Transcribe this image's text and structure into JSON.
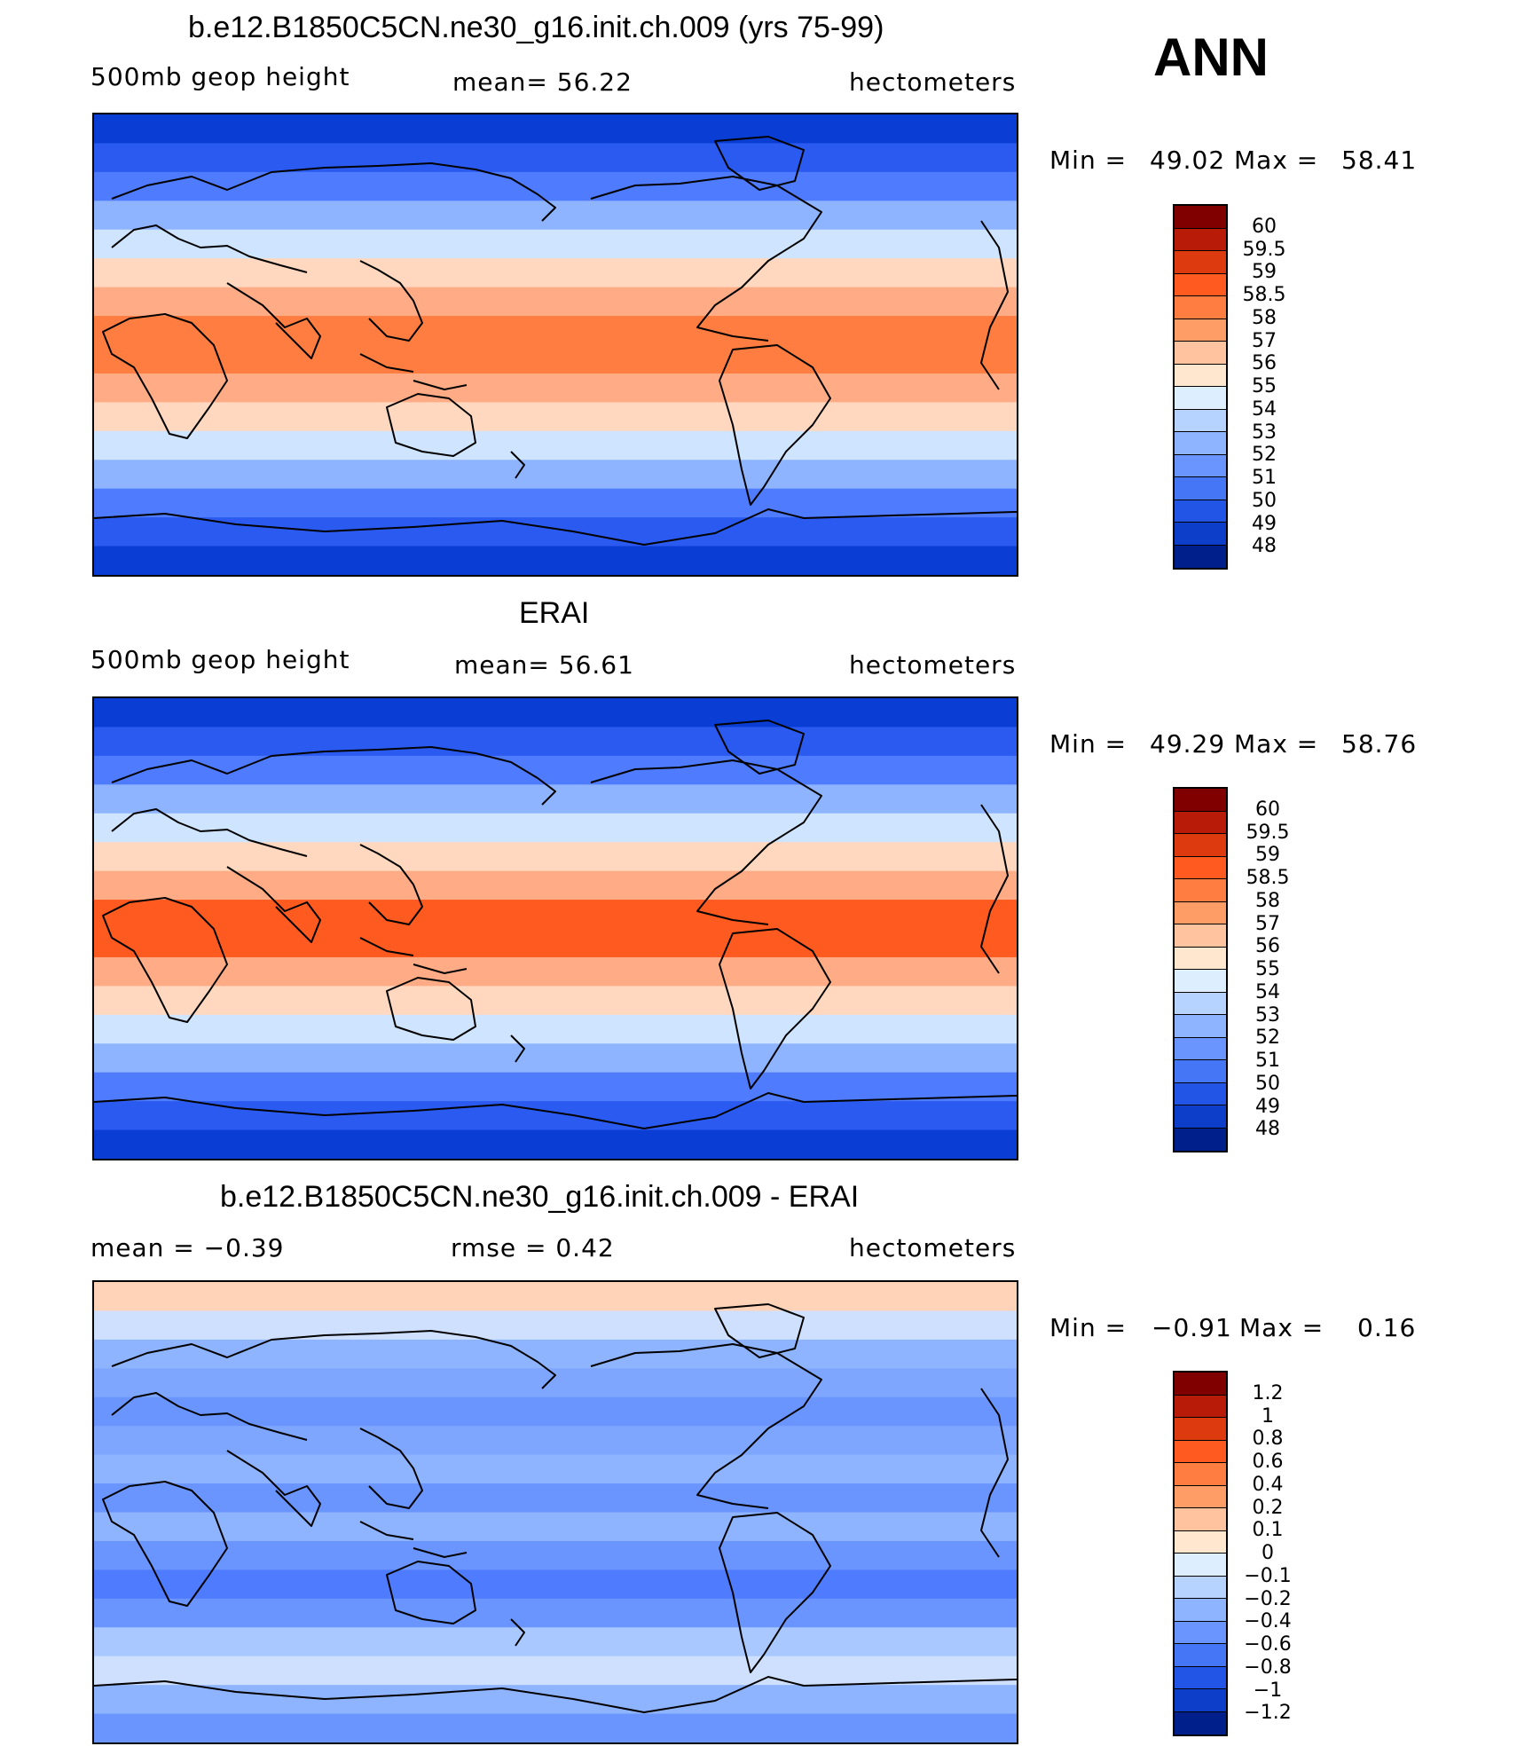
{
  "season": "ANN",
  "panels": [
    {
      "title": "b.e12.B1850C5CN.ne30_g16.init.ch.009 (yrs 75-99)",
      "left_label": "500mb  geop  height",
      "center_label": "mean=   56.22",
      "units": "hectometers",
      "min_label": "Min =",
      "min_value": "49.02",
      "max_label": "Max =",
      "max_value": "58.41",
      "colorbar": {
        "labels": [
          "60",
          "59.5",
          "59",
          "58.5",
          "58",
          "57",
          "56",
          "55",
          "54",
          "53",
          "52",
          "51",
          "50",
          "49",
          "48"
        ],
        "colors": [
          "#800000",
          "#b81c08",
          "#de3a10",
          "#ff5a1f",
          "#ff7d40",
          "#ff9d66",
          "#ffc3a0",
          "#ffe6cf",
          "#dceeff",
          "#b6d3ff",
          "#8fb4ff",
          "#6a95ff",
          "#4576f5",
          "#2255e6",
          "#0d3ec9",
          "#001f8a"
        ]
      },
      "bands": [
        "#0a3dd4",
        "#2a5af0",
        "#4f7bff",
        "#8fb4ff",
        "#cfe4ff",
        "#ffd8bf",
        "#ffac86",
        "#ff7d40",
        "#ff7d40",
        "#ffac86",
        "#ffd8bf",
        "#cfe4ff",
        "#8fb4ff",
        "#4f7bff",
        "#2a5af0",
        "#0a3dd4"
      ]
    },
    {
      "title": "ERAI",
      "left_label": "500mb  geop  height",
      "center_label": "mean=   56.61",
      "units": "hectometers",
      "min_label": "Min =",
      "min_value": "49.29",
      "max_label": "Max =",
      "max_value": "58.76",
      "colorbar": {
        "labels": [
          "60",
          "59.5",
          "59",
          "58.5",
          "58",
          "57",
          "56",
          "55",
          "54",
          "53",
          "52",
          "51",
          "50",
          "49",
          "48"
        ],
        "colors": [
          "#800000",
          "#b81c08",
          "#de3a10",
          "#ff5a1f",
          "#ff7d40",
          "#ff9d66",
          "#ffc3a0",
          "#ffe6cf",
          "#dceeff",
          "#b6d3ff",
          "#8fb4ff",
          "#6a95ff",
          "#4576f5",
          "#2255e6",
          "#0d3ec9",
          "#001f8a"
        ]
      },
      "bands": [
        "#0a3dd4",
        "#2a5af0",
        "#4f7bff",
        "#8fb4ff",
        "#cfe4ff",
        "#ffd8bf",
        "#ffac86",
        "#ff5a1f",
        "#ff5a1f",
        "#ffac86",
        "#ffd8bf",
        "#cfe4ff",
        "#8fb4ff",
        "#4f7bff",
        "#2a5af0",
        "#0a3dd4"
      ]
    },
    {
      "title": "b.e12.B1850C5CN.ne30_g16.init.ch.009 - ERAI",
      "left_label": "mean =   −0.39",
      "center_label": "rmse =    0.42",
      "units": "hectometers",
      "min_label": "Min =",
      "min_value": "−0.91",
      "max_label": "Max =",
      "max_value": "0.16",
      "colorbar": {
        "labels": [
          "1.2",
          "1",
          "0.8",
          "0.6",
          "0.4",
          "0.2",
          "0.1",
          "0",
          "−0.1",
          "−0.2",
          "−0.4",
          "−0.6",
          "−0.8",
          "−1",
          "−1.2"
        ],
        "colors": [
          "#800000",
          "#b81c08",
          "#de3a10",
          "#ff5a1f",
          "#ff7d40",
          "#ff9d66",
          "#ffc3a0",
          "#ffe6cf",
          "#dceeff",
          "#b6d3ff",
          "#8fb4ff",
          "#6a95ff",
          "#4576f5",
          "#2255e6",
          "#0d3ec9",
          "#001f8a"
        ]
      },
      "bands": [
        "#ffd3b8",
        "#cfe0ff",
        "#8fb4ff",
        "#7fa6ff",
        "#6a95ff",
        "#7fa6ff",
        "#8fb4ff",
        "#6a95ff",
        "#8fb4ff",
        "#6a95ff",
        "#4f7bff",
        "#6a95ff",
        "#a8c8ff",
        "#cfe0ff",
        "#8fb4ff",
        "#6a95ff"
      ]
    }
  ]
}
